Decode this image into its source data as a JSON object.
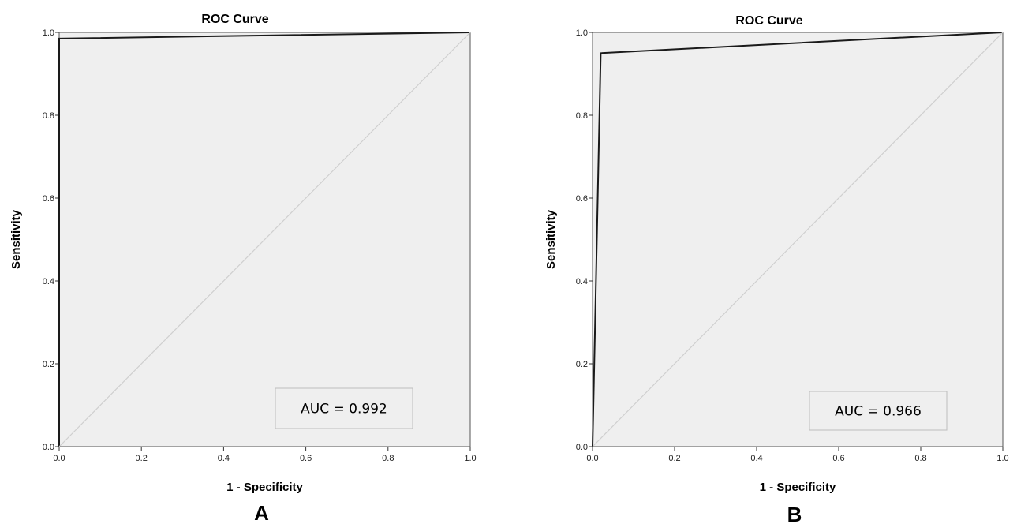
{
  "chart_data": [
    {
      "type": "line",
      "panel_label": "A",
      "title": "ROC Curve",
      "xlabel": "1 - Specificity",
      "ylabel": "Sensitivity",
      "xlim": [
        0,
        1
      ],
      "ylim": [
        0,
        1
      ],
      "x_ticks": [
        "0.0",
        "0.2",
        "0.4",
        "0.6",
        "0.8",
        "1.0"
      ],
      "y_ticks": [
        "0.0",
        "0.2",
        "0.4",
        "0.6",
        "0.8",
        "1.0"
      ],
      "grid": false,
      "series": [
        {
          "x": [
            0,
            0,
            1
          ],
          "y": [
            0,
            0.985,
            1
          ],
          "color": "#1a1a1a"
        },
        {
          "x": [
            0,
            1
          ],
          "y": [
            0,
            1
          ],
          "color": "#cfcfcf"
        }
      ],
      "annotation": "AUC = 0.992",
      "plot_background": "#efefef"
    },
    {
      "type": "line",
      "panel_label": "B",
      "title": "ROC Curve",
      "xlabel": "1 - Specificity",
      "ylabel": "Sensitivity",
      "xlim": [
        0,
        1
      ],
      "ylim": [
        0,
        1
      ],
      "x_ticks": [
        "0.0",
        "0.2",
        "0.4",
        "0.6",
        "0.8",
        "1.0"
      ],
      "y_ticks": [
        "0.0",
        "0.2",
        "0.4",
        "0.6",
        "0.8",
        "1.0"
      ],
      "grid": false,
      "series": [
        {
          "x": [
            0,
            0.02,
            1
          ],
          "y": [
            0,
            0.95,
            1
          ],
          "color": "#1a1a1a"
        },
        {
          "x": [
            0,
            1
          ],
          "y": [
            0,
            1
          ],
          "color": "#cfcfcf"
        }
      ],
      "annotation": "AUC = 0.966",
      "plot_background": "#efefef"
    }
  ]
}
